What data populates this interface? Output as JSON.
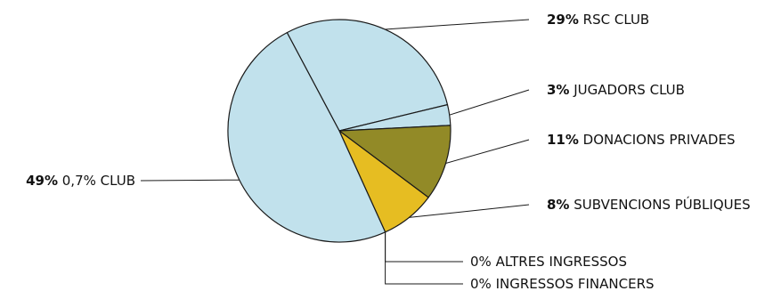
{
  "chart_data": {
    "type": "pie",
    "title": "",
    "legend": "callout-labels",
    "slices": [
      {
        "label": "RSC CLUB",
        "value": 29,
        "value_text": "29%",
        "color": "#c1e1ec"
      },
      {
        "label": "JUGADORS CLUB",
        "value": 3,
        "value_text": "3%",
        "color": "#c1e1ec"
      },
      {
        "label": "DONACIONS PRIVADES",
        "value": 11,
        "value_text": "11%",
        "color": "#928a27"
      },
      {
        "label": "SUBVENCIONS PÚBLIQUES",
        "value": 8,
        "value_text": "8%",
        "color": "#e6bd22"
      },
      {
        "label": "ALTRES INGRESSOS",
        "value": 0,
        "value_text": "0%",
        "color": "#c1e1ec"
      },
      {
        "label": "INGRESSOS FINANCERS",
        "value": 0,
        "value_text": "0%",
        "color": "#c1e1ec"
      },
      {
        "label": "0,7% CLUB",
        "value": 49,
        "value_text": "49%",
        "color": "#c1e1ec"
      }
    ]
  }
}
